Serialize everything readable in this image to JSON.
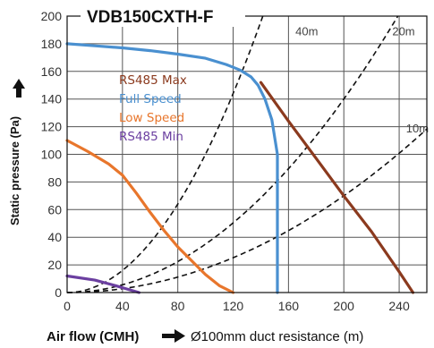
{
  "chart_data": {
    "type": "line",
    "title": "VDB150CXTH-F",
    "ylabel": "Static pressure (Pa)",
    "xlabel": "Air flow (CMH)",
    "xnote": "Ø100mm duct resistance (m)",
    "xlim": [
      0,
      260
    ],
    "ylim": [
      0,
      200
    ],
    "xticks": [
      "0",
      "40",
      "80",
      "120",
      "160",
      "200",
      "240"
    ],
    "yticks": [
      "0",
      "20",
      "40",
      "60",
      "80",
      "100",
      "120",
      "140",
      "160",
      "180",
      "200"
    ],
    "grid": true,
    "legend_position": "left",
    "series": [
      {
        "name": "RS485 Max",
        "color": "#8B3A1E",
        "x": [
          140,
          160,
          180,
          200,
          220,
          240,
          250
        ],
        "y": [
          152,
          124,
          97,
          70,
          44,
          15,
          0
        ]
      },
      {
        "name": "Full Speed",
        "color": "#4A90D0",
        "x": [
          0,
          20,
          40,
          60,
          80,
          100,
          115,
          125,
          133,
          138,
          143,
          148,
          152,
          152
        ],
        "y": [
          180,
          178.5,
          177,
          175,
          172.5,
          169.5,
          165,
          161,
          156,
          150,
          140,
          125,
          100,
          0
        ]
      },
      {
        "name": "Low Speed",
        "color": "#E8762C",
        "x": [
          0,
          15,
          30,
          40,
          50,
          60,
          70,
          80,
          90,
          100,
          110,
          120
        ],
        "y": [
          110,
          102,
          93,
          85,
          72,
          58,
          45,
          33,
          23,
          13,
          5,
          0
        ]
      },
      {
        "name": "RS485 Min",
        "color": "#6B3FA0",
        "x": [
          0,
          20,
          35,
          45,
          52
        ],
        "y": [
          12,
          9,
          5,
          2,
          0
        ]
      }
    ],
    "duct_curves": [
      {
        "label": "40m",
        "k": 0.01,
        "label_x": 165,
        "label_y": 186
      },
      {
        "label": "20m",
        "k": 0.0035,
        "label_x": 235,
        "label_y": 186
      },
      {
        "label": "10m",
        "k": 0.00175,
        "label_x": 245,
        "label_y": 116
      }
    ],
    "colors": {
      "duct": "#111111",
      "grid": "#555555"
    }
  }
}
